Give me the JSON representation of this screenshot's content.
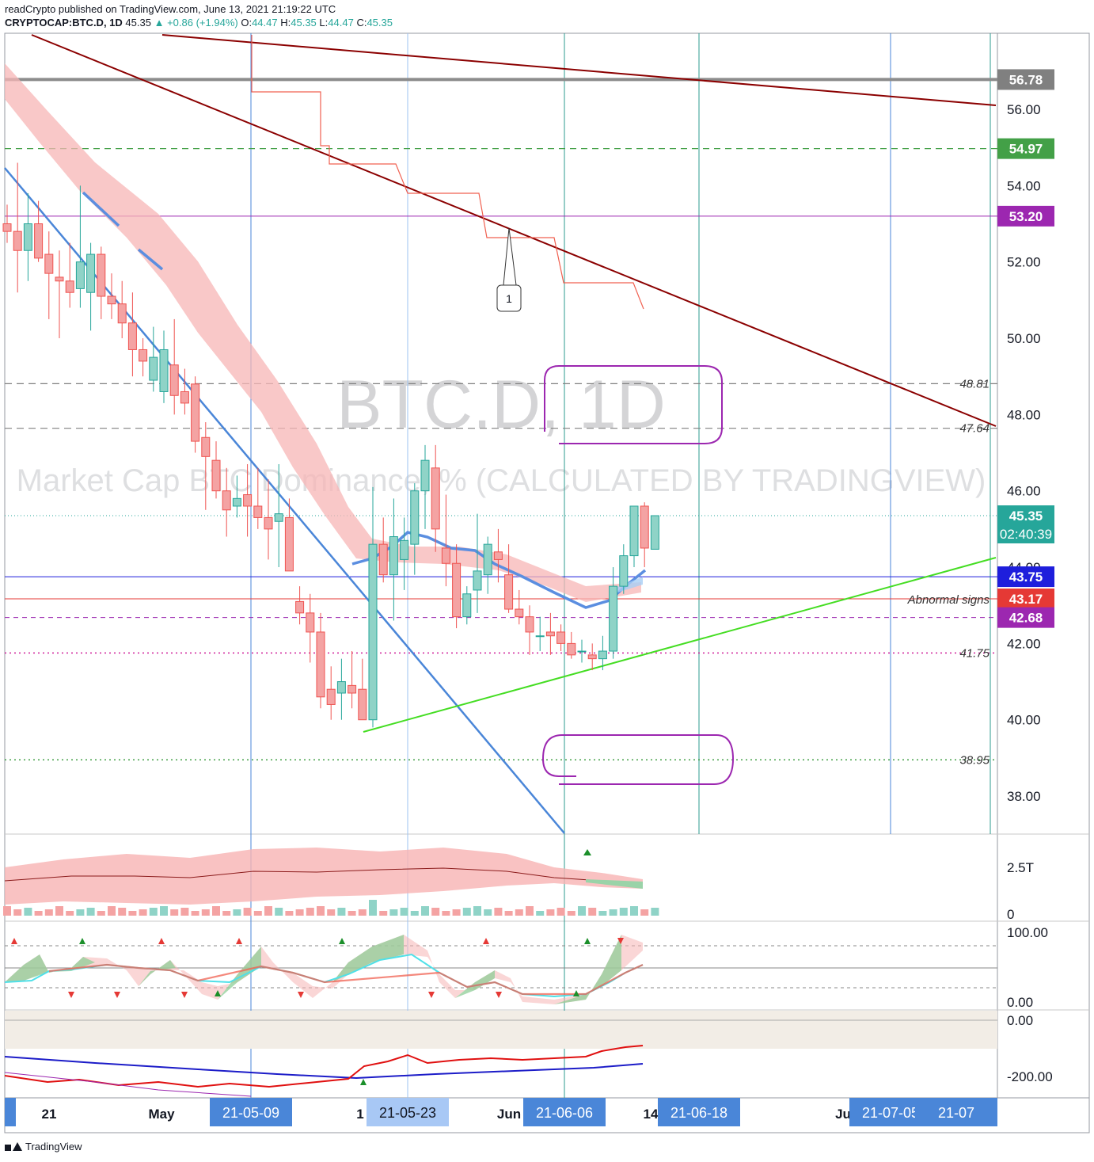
{
  "header": {
    "published": "readCrypto published on TradingView.com, June 13, 2021 21:19:22 UTC",
    "symbol": "CRYPTOCAP:BTC.D, 1D",
    "last": "45.35",
    "change": "+0.86 (+1.94%)",
    "ohlc_label_o": "O:",
    "ohlc_o": "44.47",
    "ohlc_label_h": "H:",
    "ohlc_h": "45.35",
    "ohlc_label_l": "L:",
    "ohlc_l": "44.47",
    "ohlc_label_c": "C:",
    "ohlc_c": "45.35"
  },
  "watermark": {
    "title": "BTC.D, 1D",
    "subtitle": "Market Cap BTC Dominance, % (CALCULATED BY TRADINGVIEW)"
  },
  "footer": {
    "brand": "TradingView"
  },
  "colors": {
    "up": "#26a69a",
    "down": "#ef5350",
    "up_fill": "#8fd3c7",
    "down_fill": "#f4a3a3",
    "trend_dark": "#8b0000",
    "trend_blue": "#4a86d8",
    "trend_green": "#44dd22",
    "purple": "#9c27b0",
    "hline_blue": "#1e1edc",
    "hline_red": "#e53935"
  },
  "chart_data": {
    "type": "candlestick",
    "y_range": [
      37.0,
      58.8
    ],
    "y_ticks": [
      38.0,
      40.0,
      42.0,
      44.0,
      46.0,
      48.0,
      50.0,
      52.0,
      54.0,
      56.0
    ],
    "y_tick_labels": [
      "38.00",
      "40.00",
      "42.00",
      "44.00",
      "46.00",
      "48.00",
      "50.00",
      "52.00",
      "54.00",
      "56.00"
    ],
    "price_badges": [
      {
        "value": 56.78,
        "label": "56.78",
        "color": "#808080"
      },
      {
        "value": 54.97,
        "label": "54.97",
        "color": "#43a047"
      },
      {
        "value": 53.2,
        "label": "53.20",
        "color": "#9c27b0"
      },
      {
        "value": 45.35,
        "label": "45.35",
        "label2": "02:40:39",
        "color": "#26a69a"
      },
      {
        "value": 43.75,
        "label": "43.75",
        "color": "#1e1edc"
      },
      {
        "value": 43.17,
        "label": "43.17",
        "color": "#e53935"
      },
      {
        "value": 42.68,
        "label": "42.68",
        "color": "#9c27b0"
      }
    ],
    "level_labels": [
      {
        "value": 48.81,
        "label": "48.81"
      },
      {
        "value": 47.64,
        "label": "47.64"
      },
      {
        "value": 41.75,
        "label": "41.75"
      },
      {
        "value": 38.95,
        "label": "38.95"
      }
    ],
    "annotation_text": "Abnormal signs",
    "callout_label": "1",
    "x_labels": [
      {
        "label": "21",
        "highlight": false
      },
      {
        "label": "May",
        "highlight": false
      },
      {
        "label": "21-05-09",
        "highlight": true
      },
      {
        "label": "1",
        "highlight": false
      },
      {
        "label": "21-05-23",
        "highlight": true,
        "light": true
      },
      {
        "label": "Jun",
        "highlight": false
      },
      {
        "label": "21-06-06",
        "highlight": true
      },
      {
        "label": "14",
        "highlight": false
      },
      {
        "label": "21-06-18",
        "highlight": true
      },
      {
        "label": "Ju",
        "highlight": false
      },
      {
        "label": "21-07-05",
        "highlight": true
      },
      {
        "label": "21-07",
        "highlight": true
      }
    ],
    "candles": [
      [
        53.0,
        53.5,
        52.5,
        52.8
      ],
      [
        52.8,
        54.6,
        51.2,
        52.3
      ],
      [
        52.3,
        53.8,
        51.5,
        53.0
      ],
      [
        53.0,
        53.6,
        52.0,
        52.1
      ],
      [
        52.2,
        52.8,
        50.5,
        51.7
      ],
      [
        51.6,
        52.3,
        50.0,
        51.5
      ],
      [
        51.5,
        52.5,
        50.8,
        51.2
      ],
      [
        51.3,
        54.0,
        50.8,
        52.0
      ],
      [
        51.2,
        52.5,
        50.2,
        52.2
      ],
      [
        52.2,
        52.4,
        50.5,
        51.1
      ],
      [
        51.1,
        51.7,
        50.5,
        50.9
      ],
      [
        50.9,
        51.5,
        50.0,
        50.4
      ],
      [
        50.4,
        51.2,
        49.0,
        49.7
      ],
      [
        49.7,
        50.0,
        49.0,
        49.4
      ],
      [
        48.9,
        50.3,
        48.6,
        49.5
      ],
      [
        48.6,
        50.2,
        48.3,
        49.7
      ],
      [
        49.3,
        50.5,
        48.0,
        48.5
      ],
      [
        48.6,
        49.2,
        48.0,
        48.3
      ],
      [
        48.8,
        49.0,
        47.0,
        47.3
      ],
      [
        47.4,
        47.8,
        45.5,
        46.9
      ],
      [
        46.8,
        47.3,
        45.8,
        46.0
      ],
      [
        46.0,
        46.6,
        44.8,
        45.5
      ],
      [
        45.6,
        46.4,
        45.3,
        45.8
      ],
      [
        45.9,
        46.7,
        44.8,
        45.6
      ],
      [
        45.6,
        46.6,
        45.0,
        45.3
      ],
      [
        45.3,
        46.3,
        44.2,
        45.0
      ],
      [
        45.2,
        46.7,
        44.0,
        45.4
      ],
      [
        45.3,
        45.8,
        44.0,
        43.9
      ],
      [
        43.1,
        43.5,
        42.5,
        42.8
      ],
      [
        42.8,
        43.3,
        41.5,
        42.3
      ],
      [
        42.3,
        42.8,
        40.3,
        40.6
      ],
      [
        40.8,
        41.4,
        40.0,
        40.4
      ],
      [
        40.7,
        41.6,
        40.0,
        41.0
      ],
      [
        40.9,
        41.8,
        40.3,
        40.7
      ],
      [
        40.8,
        41.6,
        40.0,
        40.0
      ],
      [
        40.0,
        46.1,
        39.8,
        44.6
      ],
      [
        44.6,
        45.3,
        43.6,
        43.8
      ],
      [
        43.8,
        45.8,
        42.6,
        44.8
      ],
      [
        44.2,
        45.3,
        43.4,
        44.7
      ],
      [
        44.6,
        46.2,
        43.8,
        46.0
      ],
      [
        46.0,
        47.2,
        45.0,
        46.8
      ],
      [
        46.6,
        47.2,
        44.4,
        45.0
      ],
      [
        44.5,
        45.9,
        43.5,
        44.1
      ],
      [
        44.1,
        44.6,
        42.4,
        42.7
      ],
      [
        42.7,
        43.5,
        42.5,
        43.3
      ],
      [
        43.4,
        45.4,
        42.8,
        43.9
      ],
      [
        43.8,
        44.8,
        43.3,
        44.6
      ],
      [
        44.4,
        45.0,
        43.6,
        44.2
      ],
      [
        43.8,
        44.6,
        42.8,
        42.9
      ],
      [
        42.9,
        43.4,
        42.5,
        42.7
      ],
      [
        42.7,
        43.0,
        41.7,
        42.3
      ],
      [
        42.2,
        42.7,
        41.8,
        42.2
      ],
      [
        42.3,
        42.8,
        41.7,
        42.2
      ],
      [
        42.3,
        42.5,
        41.8,
        42.0
      ],
      [
        42.0,
        42.3,
        41.6,
        41.7
      ],
      [
        41.8,
        42.1,
        41.5,
        41.8
      ],
      [
        41.7,
        42.0,
        41.3,
        41.6
      ],
      [
        41.6,
        42.2,
        41.3,
        41.8
      ],
      [
        41.8,
        44.0,
        41.6,
        43.5
      ],
      [
        43.5,
        44.6,
        43.3,
        44.3
      ],
      [
        44.3,
        45.6,
        44.0,
        45.6
      ],
      [
        45.6,
        45.7,
        44.0,
        44.5
      ],
      [
        44.47,
        45.35,
        44.47,
        45.35
      ]
    ],
    "volume_axis_labels": [
      "2.5T",
      "0"
    ],
    "stoch_axis_labels": [
      "100.00",
      "0.00"
    ],
    "osc_axis_labels": [
      "0.00",
      "-200.00"
    ]
  }
}
